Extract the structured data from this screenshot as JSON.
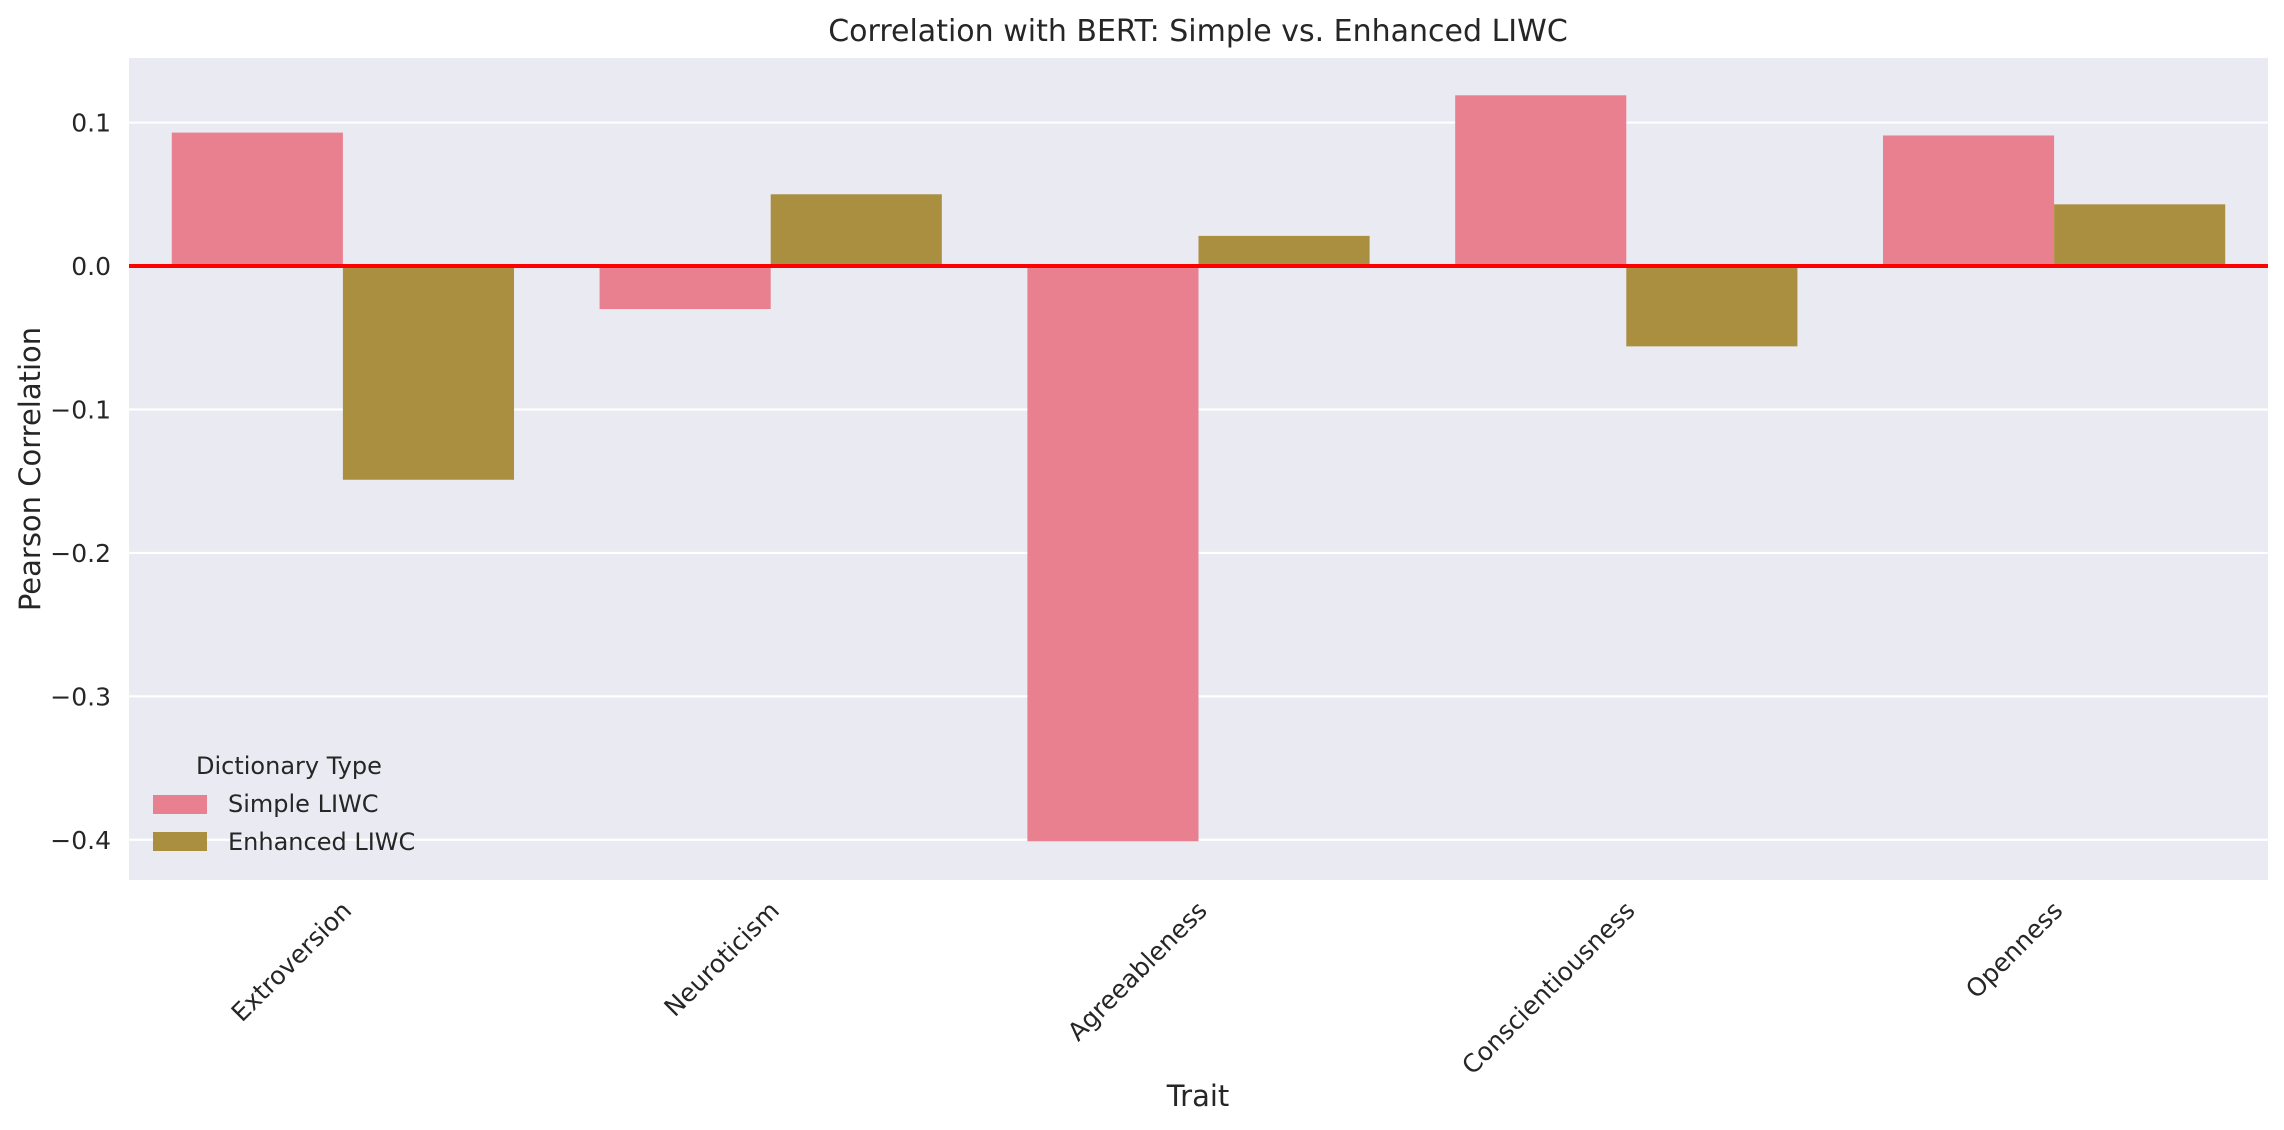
{
  "chart_data": {
    "type": "bar",
    "title": "Correlation with BERT: Simple vs. Enhanced LIWC",
    "xlabel": "Trait",
    "ylabel": "Pearson Correlation",
    "categories": [
      "Extroversion",
      "Neuroticism",
      "Agreeableness",
      "Conscientiousness",
      "Openness"
    ],
    "series": [
      {
        "name": "Simple LIWC",
        "color": "#e8808f",
        "values": [
          0.093,
          -0.03,
          -0.401,
          0.119,
          0.091
        ]
      },
      {
        "name": "Enhanced LIWC",
        "color": "#ab8f41",
        "values": [
          -0.149,
          0.05,
          0.021,
          -0.056,
          0.043
        ]
      }
    ],
    "ylim": [
      -0.428,
      0.145
    ],
    "yticks": [
      0.1,
      0.0,
      -0.1,
      -0.2,
      -0.3,
      -0.4
    ],
    "ytick_labels": [
      "0.1",
      "0.0",
      "−0.1",
      "−0.2",
      "−0.3",
      "−0.4"
    ],
    "reference_line": {
      "y": 0.0,
      "color": "#ff0000"
    },
    "grid": true,
    "background": "#eaeaf2",
    "legend": {
      "title": "Dictionary Type",
      "position": "lower-left"
    }
  }
}
